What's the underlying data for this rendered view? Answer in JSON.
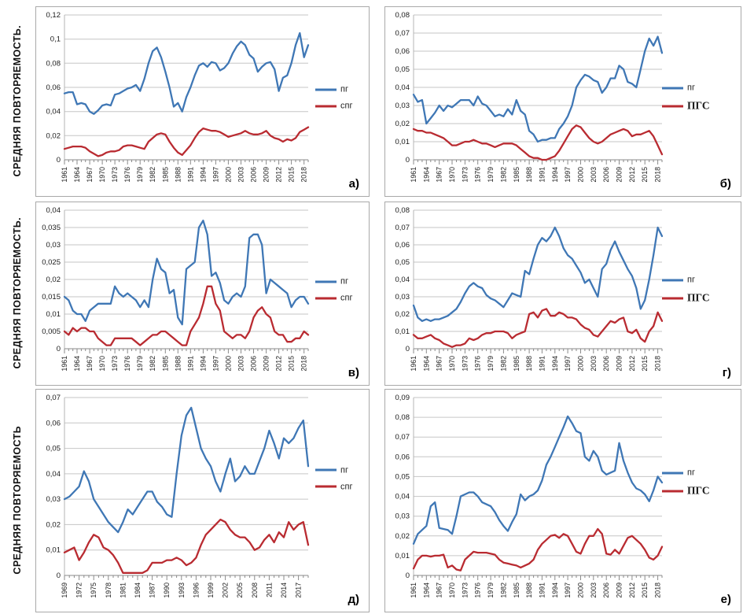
{
  "page": {
    "background": "#ffffff"
  },
  "colors": {
    "line_pg": "#3f77b5",
    "line_spg": "#b92b31",
    "grid": "#c6c6c6",
    "axis": "#8a8a8a",
    "axis_left": "#b6b6b6",
    "panel_border": "#a9a9a9",
    "text": "#1a1a1a"
  },
  "rows": [
    {
      "ylabel": "СРЕДНЯЯ ПОВТОРЯЕМОСТЬ."
    },
    {
      "ylabel": "СРЕДНЯЯ ПОВТОРЯЕМОСТЬ."
    },
    {
      "ylabel": "СРЕДНЯЯ ПОВТОРЯЕМОСТЬ"
    }
  ],
  "chart_data": [
    {
      "type": "line",
      "panel": "a",
      "letter": "а)",
      "start_year": 1961,
      "x_ticks": [
        1961,
        1964,
        1967,
        1970,
        1973,
        1976,
        1979,
        1982,
        1985,
        1988,
        1991,
        1994,
        1997,
        2000,
        2003,
        2006,
        2009,
        2012,
        2015,
        2018
      ],
      "y_ticks": [
        "0",
        "0,02",
        "0,04",
        "0,06",
        "0,08",
        "0,1",
        "0,12"
      ],
      "ylim": [
        0,
        0.12
      ],
      "grid": true,
      "legend_position": "right",
      "series": [
        {
          "name": "пг",
          "color": "line_pg",
          "bold": false,
          "values": [
            0.055,
            0.056,
            0.056,
            0.046,
            0.047,
            0.046,
            0.04,
            0.038,
            0.041,
            0.045,
            0.046,
            0.045,
            0.054,
            0.055,
            0.057,
            0.059,
            0.06,
            0.062,
            0.057,
            0.067,
            0.08,
            0.09,
            0.093,
            0.085,
            0.073,
            0.06,
            0.044,
            0.047,
            0.04,
            0.052,
            0.06,
            0.07,
            0.078,
            0.08,
            0.077,
            0.081,
            0.08,
            0.074,
            0.076,
            0.08,
            0.088,
            0.094,
            0.098,
            0.095,
            0.087,
            0.084,
            0.073,
            0.077,
            0.08,
            0.081,
            0.075,
            0.057,
            0.068,
            0.07,
            0.08,
            0.095,
            0.105,
            0.085,
            0.095
          ]
        },
        {
          "name": "спг",
          "color": "line_spg",
          "bold": false,
          "values": [
            0.009,
            0.01,
            0.011,
            0.011,
            0.011,
            0.01,
            0.007,
            0.005,
            0.003,
            0.004,
            0.006,
            0.007,
            0.007,
            0.008,
            0.011,
            0.012,
            0.012,
            0.011,
            0.01,
            0.009,
            0.015,
            0.018,
            0.021,
            0.022,
            0.021,
            0.015,
            0.01,
            0.006,
            0.004,
            0.008,
            0.012,
            0.018,
            0.023,
            0.026,
            0.025,
            0.024,
            0.024,
            0.023,
            0.021,
            0.019,
            0.02,
            0.021,
            0.022,
            0.024,
            0.022,
            0.021,
            0.021,
            0.022,
            0.024,
            0.02,
            0.018,
            0.017,
            0.015,
            0.017,
            0.016,
            0.018,
            0.023,
            0.025,
            0.027
          ]
        }
      ]
    },
    {
      "type": "line",
      "panel": "b",
      "letter": "б)",
      "start_year": 1961,
      "x_ticks": [
        1961,
        1964,
        1967,
        1970,
        1973,
        1976,
        1979,
        1982,
        1985,
        1988,
        1991,
        1994,
        1997,
        2000,
        2003,
        2006,
        2009,
        2012,
        2015,
        2018
      ],
      "y_ticks": [
        "0",
        "0,01",
        "0,02",
        "0,03",
        "0,04",
        "0,05",
        "0,06",
        "0,07",
        "0,08"
      ],
      "ylim": [
        0,
        0.08
      ],
      "grid": true,
      "legend_position": "right",
      "series": [
        {
          "name": "пг",
          "color": "line_pg",
          "bold": false,
          "values": [
            0.036,
            0.032,
            0.033,
            0.02,
            0.023,
            0.026,
            0.03,
            0.027,
            0.03,
            0.029,
            0.031,
            0.033,
            0.033,
            0.033,
            0.03,
            0.035,
            0.031,
            0.03,
            0.027,
            0.024,
            0.025,
            0.024,
            0.028,
            0.025,
            0.033,
            0.027,
            0.025,
            0.016,
            0.014,
            0.01,
            0.011,
            0.011,
            0.012,
            0.012,
            0.017,
            0.02,
            0.024,
            0.03,
            0.04,
            0.044,
            0.047,
            0.046,
            0.044,
            0.043,
            0.037,
            0.04,
            0.045,
            0.045,
            0.052,
            0.05,
            0.043,
            0.042,
            0.04,
            0.05,
            0.06,
            0.067,
            0.063,
            0.068,
            0.059
          ]
        },
        {
          "name": "ПГС",
          "color": "line_spg",
          "bold": true,
          "values": [
            0.017,
            0.016,
            0.016,
            0.015,
            0.015,
            0.014,
            0.013,
            0.012,
            0.01,
            0.008,
            0.008,
            0.009,
            0.01,
            0.01,
            0.011,
            0.01,
            0.009,
            0.009,
            0.008,
            0.007,
            0.008,
            0.009,
            0.009,
            0.009,
            0.008,
            0.006,
            0.004,
            0.002,
            0.001,
            0.001,
            0.0,
            0.0,
            0.001,
            0.002,
            0.005,
            0.009,
            0.013,
            0.017,
            0.019,
            0.018,
            0.015,
            0.012,
            0.01,
            0.009,
            0.01,
            0.012,
            0.014,
            0.015,
            0.016,
            0.017,
            0.016,
            0.013,
            0.014,
            0.014,
            0.015,
            0.016,
            0.013,
            0.008,
            0.003
          ]
        }
      ]
    },
    {
      "type": "line",
      "panel": "v",
      "letter": "в)",
      "start_year": 1961,
      "x_ticks": [
        1961,
        1964,
        1967,
        1970,
        1973,
        1976,
        1979,
        1982,
        1985,
        1988,
        1991,
        1994,
        1997,
        2000,
        2003,
        2006,
        2009,
        2012,
        2015,
        2018
      ],
      "y_ticks": [
        "0",
        "0,005",
        "0,01",
        "0,015",
        "0,02",
        "0,025",
        "0,03",
        "0,035",
        "0,04"
      ],
      "ylim": [
        0,
        0.04
      ],
      "grid": true,
      "legend_position": "right",
      "series": [
        {
          "name": "пг",
          "color": "line_pg",
          "bold": false,
          "values": [
            0.015,
            0.014,
            0.011,
            0.01,
            0.01,
            0.008,
            0.011,
            0.012,
            0.013,
            0.013,
            0.013,
            0.013,
            0.018,
            0.016,
            0.015,
            0.016,
            0.015,
            0.014,
            0.012,
            0.014,
            0.012,
            0.02,
            0.026,
            0.023,
            0.022,
            0.016,
            0.017,
            0.009,
            0.007,
            0.023,
            0.024,
            0.025,
            0.035,
            0.037,
            0.033,
            0.021,
            0.022,
            0.019,
            0.014,
            0.013,
            0.015,
            0.016,
            0.015,
            0.018,
            0.032,
            0.033,
            0.033,
            0.03,
            0.016,
            0.02,
            0.019,
            0.018,
            0.017,
            0.016,
            0.012,
            0.014,
            0.015,
            0.015,
            0.013
          ]
        },
        {
          "name": "спг",
          "color": "line_spg",
          "bold": false,
          "values": [
            0.005,
            0.004,
            0.006,
            0.005,
            0.006,
            0.006,
            0.005,
            0.005,
            0.003,
            0.002,
            0.001,
            0.001,
            0.003,
            0.003,
            0.003,
            0.003,
            0.003,
            0.002,
            0.001,
            0.002,
            0.003,
            0.004,
            0.004,
            0.005,
            0.005,
            0.004,
            0.003,
            0.002,
            0.001,
            0.001,
            0.005,
            0.007,
            0.009,
            0.013,
            0.018,
            0.018,
            0.013,
            0.011,
            0.005,
            0.004,
            0.003,
            0.004,
            0.004,
            0.003,
            0.005,
            0.009,
            0.011,
            0.012,
            0.01,
            0.009,
            0.005,
            0.004,
            0.004,
            0.002,
            0.002,
            0.003,
            0.003,
            0.005,
            0.004
          ]
        }
      ]
    },
    {
      "type": "line",
      "panel": "g",
      "letter": "г)",
      "start_year": 1961,
      "x_ticks": [
        1961,
        1964,
        1967,
        1970,
        1973,
        1976,
        1979,
        1982,
        1985,
        1988,
        1991,
        1994,
        1997,
        2000,
        2003,
        2006,
        2009,
        2012,
        2015,
        2018
      ],
      "y_ticks": [
        "0",
        "0,01",
        "0,02",
        "0,03",
        "0,04",
        "0,05",
        "0,06",
        "0,07",
        "0,08"
      ],
      "ylim": [
        0,
        0.08
      ],
      "grid": true,
      "legend_position": "right",
      "series": [
        {
          "name": "пг",
          "color": "line_pg",
          "bold": false,
          "values": [
            0.025,
            0.018,
            0.016,
            0.017,
            0.016,
            0.017,
            0.017,
            0.018,
            0.019,
            0.021,
            0.023,
            0.027,
            0.032,
            0.036,
            0.038,
            0.036,
            0.035,
            0.031,
            0.029,
            0.028,
            0.026,
            0.024,
            0.028,
            0.032,
            0.031,
            0.03,
            0.045,
            0.043,
            0.052,
            0.06,
            0.064,
            0.062,
            0.065,
            0.07,
            0.065,
            0.058,
            0.054,
            0.052,
            0.048,
            0.044,
            0.038,
            0.04,
            0.035,
            0.03,
            0.046,
            0.049,
            0.057,
            0.062,
            0.056,
            0.051,
            0.046,
            0.042,
            0.035,
            0.023,
            0.028,
            0.04,
            0.054,
            0.07,
            0.065
          ]
        },
        {
          "name": "ПГС",
          "color": "line_spg",
          "bold": true,
          "values": [
            0.008,
            0.006,
            0.006,
            0.007,
            0.008,
            0.006,
            0.005,
            0.003,
            0.002,
            0.001,
            0.002,
            0.002,
            0.003,
            0.006,
            0.005,
            0.006,
            0.008,
            0.009,
            0.009,
            0.01,
            0.01,
            0.01,
            0.009,
            0.006,
            0.008,
            0.009,
            0.01,
            0.02,
            0.021,
            0.018,
            0.022,
            0.023,
            0.019,
            0.019,
            0.021,
            0.02,
            0.018,
            0.018,
            0.017,
            0.014,
            0.012,
            0.011,
            0.008,
            0.007,
            0.01,
            0.013,
            0.016,
            0.015,
            0.017,
            0.018,
            0.01,
            0.009,
            0.011,
            0.006,
            0.004,
            0.01,
            0.013,
            0.021,
            0.016
          ]
        }
      ]
    },
    {
      "type": "line",
      "panel": "d",
      "letter": "д)",
      "start_year": 1969,
      "x_ticks": [
        1969,
        1972,
        1975,
        1978,
        1981,
        1984,
        1987,
        1990,
        1993,
        1996,
        1999,
        2002,
        2005,
        2008,
        2011,
        2014,
        2017
      ],
      "y_ticks": [
        "0",
        "0,01",
        "0,02",
        "0,03",
        "0,04",
        "0,05",
        "0,06",
        "0,07"
      ],
      "ylim": [
        0,
        0.07
      ],
      "grid": true,
      "legend_position": "right",
      "series": [
        {
          "name": "пг",
          "color": "line_pg",
          "bold": false,
          "values": [
            0.03,
            0.031,
            0.033,
            0.035,
            0.041,
            0.037,
            0.03,
            0.027,
            0.024,
            0.021,
            0.019,
            0.017,
            0.021,
            0.026,
            0.024,
            0.027,
            0.03,
            0.033,
            0.033,
            0.029,
            0.027,
            0.024,
            0.023,
            0.04,
            0.055,
            0.063,
            0.066,
            0.058,
            0.05,
            0.046,
            0.043,
            0.037,
            0.033,
            0.04,
            0.046,
            0.037,
            0.039,
            0.043,
            0.04,
            0.04,
            0.045,
            0.05,
            0.057,
            0.052,
            0.046,
            0.054,
            0.052,
            0.054,
            0.058,
            0.061,
            0.043
          ]
        },
        {
          "name": "спг",
          "color": "line_spg",
          "bold": false,
          "values": [
            0.009,
            0.01,
            0.011,
            0.006,
            0.009,
            0.013,
            0.016,
            0.015,
            0.011,
            0.01,
            0.008,
            0.005,
            0.001,
            0.001,
            0.001,
            0.001,
            0.001,
            0.002,
            0.005,
            0.005,
            0.005,
            0.006,
            0.006,
            0.007,
            0.006,
            0.004,
            0.005,
            0.007,
            0.012,
            0.016,
            0.018,
            0.02,
            0.022,
            0.021,
            0.018,
            0.016,
            0.015,
            0.015,
            0.013,
            0.01,
            0.011,
            0.014,
            0.016,
            0.013,
            0.017,
            0.015,
            0.021,
            0.018,
            0.02,
            0.021,
            0.012
          ]
        }
      ]
    },
    {
      "type": "line",
      "panel": "e",
      "letter": "е)",
      "start_year": 1961,
      "x_ticks": [
        1961,
        1964,
        1967,
        1970,
        1973,
        1976,
        1979,
        1982,
        1985,
        1988,
        1991,
        1994,
        1997,
        2000,
        2003,
        2006,
        2009,
        2012,
        2015,
        2018
      ],
      "y_ticks": [
        "0",
        "0,01",
        "0,02",
        "0,03",
        "0,04",
        "0,05",
        "0,06",
        "0,07",
        "0,08",
        "0,09"
      ],
      "ylim": [
        0,
        0.09
      ],
      "grid": true,
      "legend_position": "right",
      "series": [
        {
          "name": "пг",
          "color": "line_pg",
          "bold": false,
          "values": [
            0.016,
            0.021,
            0.023,
            0.025,
            0.035,
            0.037,
            0.024,
            0.0235,
            0.023,
            0.021,
            0.03,
            0.04,
            0.041,
            0.042,
            0.042,
            0.04,
            0.037,
            0.036,
            0.035,
            0.032,
            0.028,
            0.025,
            0.0225,
            0.027,
            0.031,
            0.041,
            0.038,
            0.04,
            0.041,
            0.043,
            0.048,
            0.056,
            0.06,
            0.065,
            0.07,
            0.075,
            0.0805,
            0.077,
            0.073,
            0.072,
            0.06,
            0.058,
            0.063,
            0.06,
            0.053,
            0.051,
            0.052,
            0.053,
            0.067,
            0.058,
            0.052,
            0.047,
            0.044,
            0.043,
            0.041,
            0.0375,
            0.043,
            0.05,
            0.047
          ]
        },
        {
          "name": "ПГС",
          "color": "line_spg",
          "bold": true,
          "values": [
            0.0035,
            0.008,
            0.01,
            0.01,
            0.0095,
            0.01,
            0.01,
            0.0105,
            0.004,
            0.005,
            0.003,
            0.0025,
            0.008,
            0.01,
            0.012,
            0.0115,
            0.0115,
            0.0115,
            0.011,
            0.0105,
            0.008,
            0.0065,
            0.006,
            0.0055,
            0.005,
            0.004,
            0.005,
            0.006,
            0.008,
            0.013,
            0.016,
            0.018,
            0.02,
            0.0205,
            0.019,
            0.021,
            0.02,
            0.016,
            0.012,
            0.011,
            0.016,
            0.02,
            0.02,
            0.0235,
            0.021,
            0.011,
            0.0105,
            0.013,
            0.011,
            0.015,
            0.019,
            0.02,
            0.018,
            0.016,
            0.013,
            0.009,
            0.008,
            0.01,
            0.0145
          ]
        }
      ]
    }
  ]
}
